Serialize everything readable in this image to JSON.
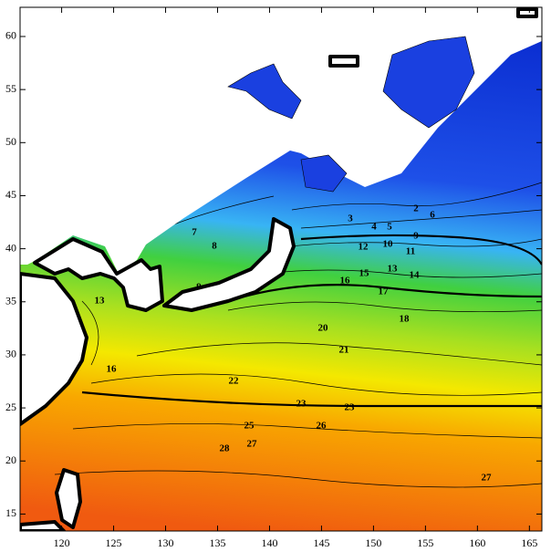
{
  "map": {
    "xlim": [
      116,
      166.2
    ],
    "ylim": [
      13.4,
      62.75
    ],
    "xticks": [
      120,
      125,
      130,
      135,
      140,
      145,
      150,
      155,
      160,
      165
    ],
    "yticks": [
      15,
      20,
      25,
      30,
      35,
      40,
      45,
      50,
      55,
      60
    ],
    "contour_labels": [
      2,
      3,
      4,
      5,
      6,
      7,
      8,
      9,
      9,
      10,
      11,
      12,
      13,
      14,
      15,
      16,
      17,
      18,
      20,
      21,
      22,
      23,
      23,
      25,
      26,
      27,
      28,
      27,
      13,
      16
    ]
  }
}
